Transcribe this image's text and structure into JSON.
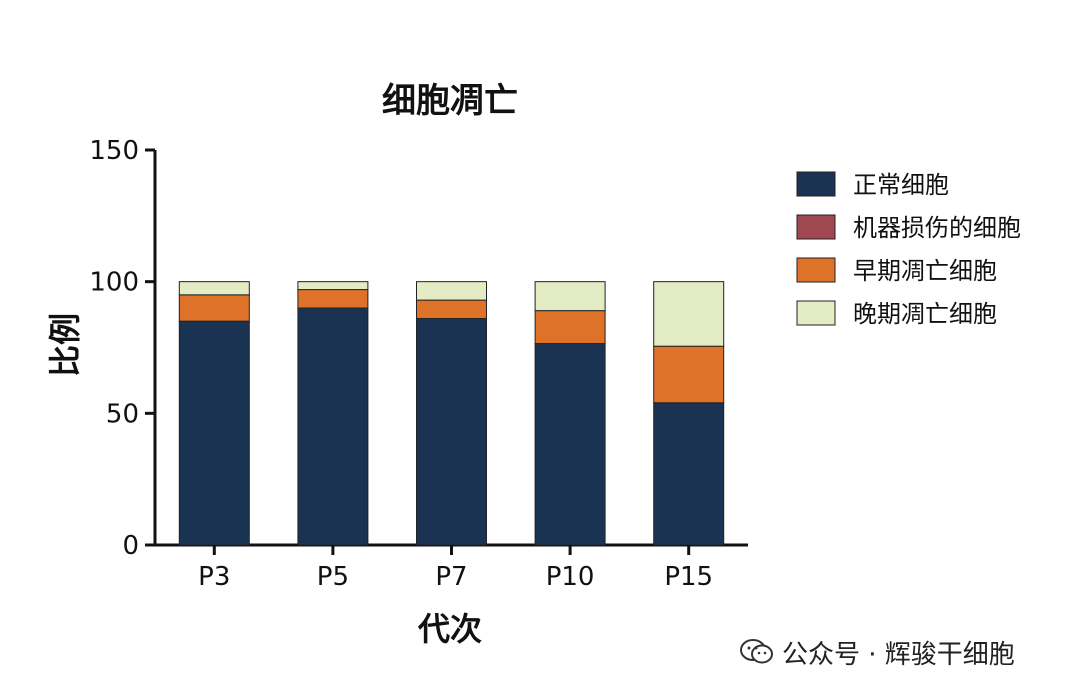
{
  "chart_data": {
    "type": "bar",
    "stacked": true,
    "title": "细胞凋亡",
    "xlabel": "代次",
    "ylabel": "比例",
    "ylim": [
      0,
      150
    ],
    "yticks": [
      0,
      50,
      100,
      150
    ],
    "categories": [
      "P3",
      "P5",
      "P7",
      "P10",
      "P15"
    ],
    "legend_position": "right",
    "series": [
      {
        "name": "正常细胞",
        "color": "#1b3352",
        "values": [
          85,
          90,
          86,
          76.5,
          54
        ]
      },
      {
        "name": "机器损伤的细胞",
        "color": "#a04850",
        "values": [
          0,
          0,
          0,
          0,
          0
        ]
      },
      {
        "name": "早期凋亡细胞",
        "color": "#dd7228",
        "values": [
          10,
          7,
          7,
          12.5,
          21.5
        ]
      },
      {
        "name": "晚期凋亡细胞",
        "color": "#e3ecc4",
        "values": [
          5,
          3,
          7,
          11,
          24.5
        ]
      }
    ]
  },
  "watermark": {
    "text": "公众号 · 辉骏干细胞",
    "icon": "wechat-icon"
  }
}
